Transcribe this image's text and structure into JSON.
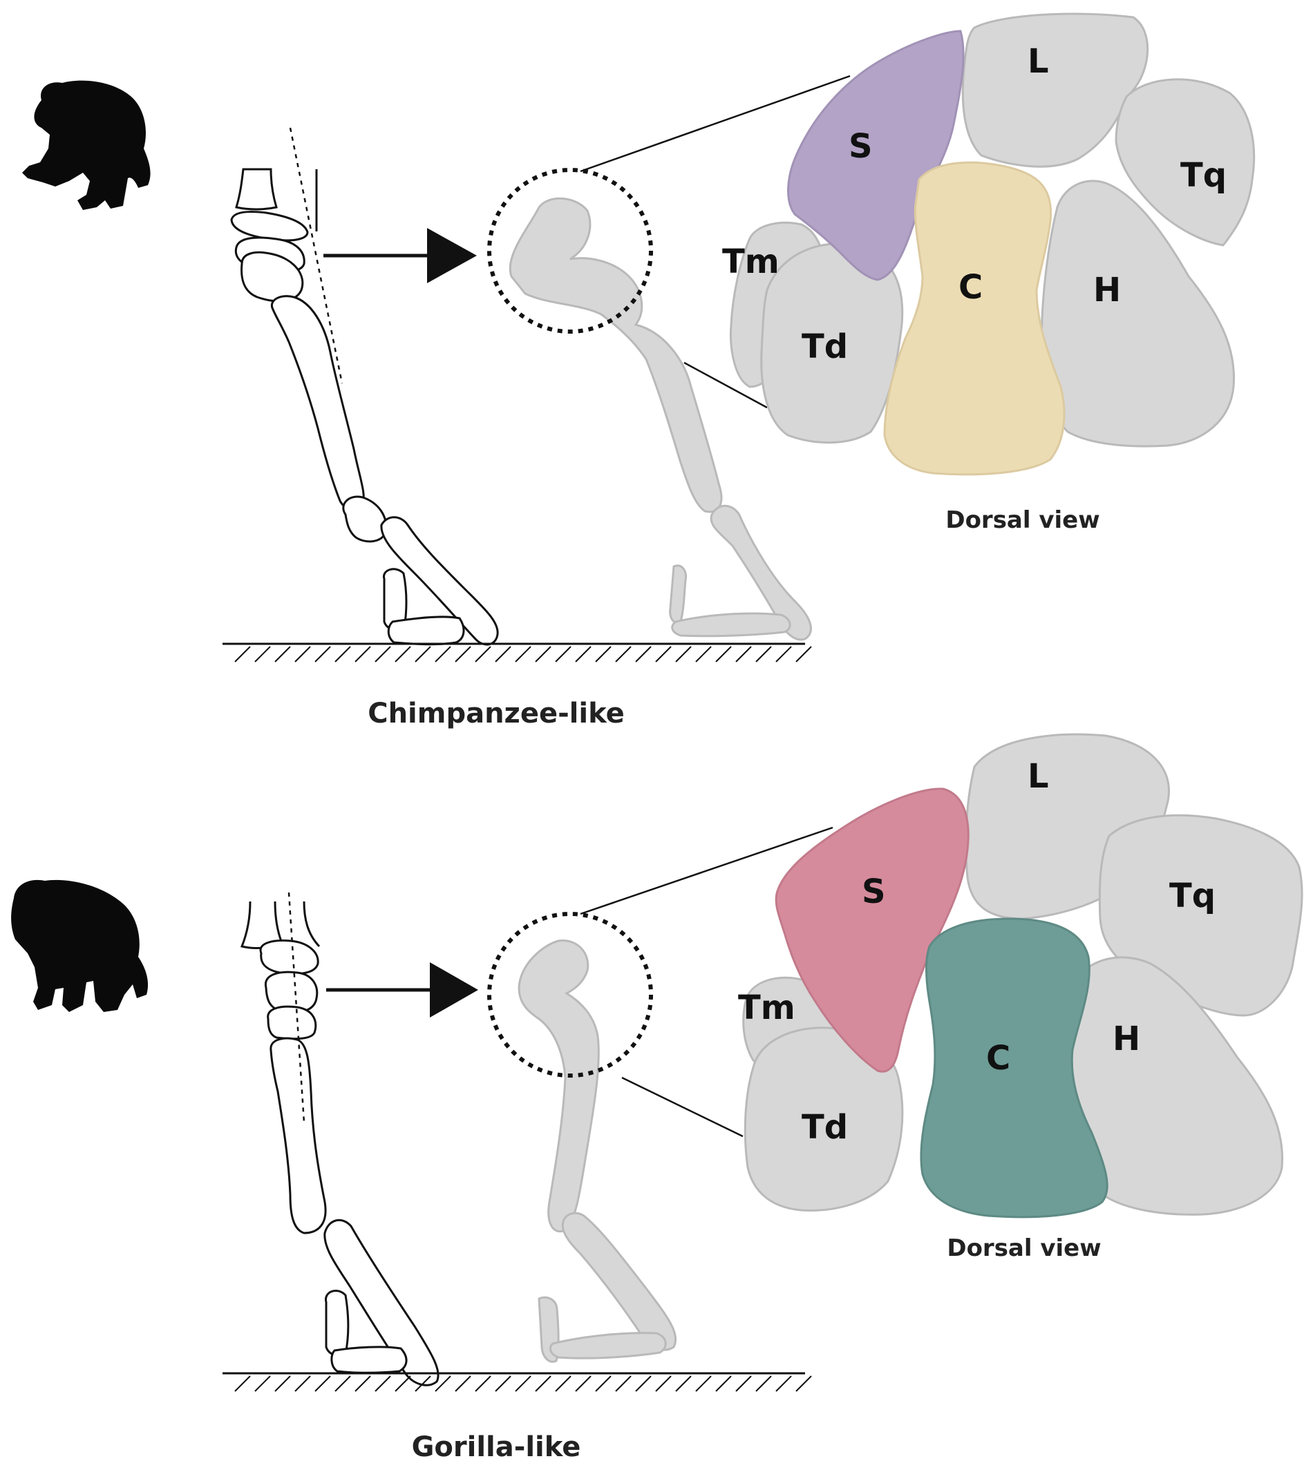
{
  "panels": [
    {
      "caption": "Chimpanzee-like",
      "view_label": "Dorsal view",
      "bones": {
        "S": "S",
        "L": "L",
        "Tq": "Tq",
        "Tm": "Tm",
        "Td": "Td",
        "C": "C",
        "H": "H"
      },
      "highlight_colors": {
        "scaphoid": "#b3a3c6",
        "capitate": "#ecdcb4"
      }
    },
    {
      "caption": "Gorilla-like",
      "view_label": "Dorsal view",
      "bones": {
        "S": "S",
        "L": "L",
        "Tq": "Tq",
        "Tm": "Tm",
        "Td": "Td",
        "C": "C",
        "H": "H"
      },
      "highlight_colors": {
        "scaphoid": "#d58b9c",
        "capitate": "#6e9c96"
      }
    }
  ],
  "colors": {
    "bone": "#d7d7d7",
    "silhouette": "#0a0a0a",
    "line": "#111111"
  },
  "icons": [
    "chimpanzee-silhouette-icon",
    "gorilla-silhouette-icon",
    "arrow-right-icon"
  ]
}
